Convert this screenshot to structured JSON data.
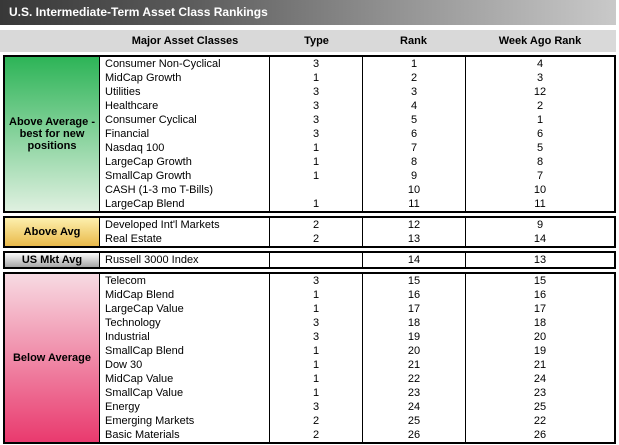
{
  "chart_data": {
    "type": "table",
    "title": "U.S. Intermediate-Term Asset Class Rankings",
    "columns": [
      "Major Asset Classes",
      "Type",
      "Rank",
      "Week Ago Rank"
    ],
    "sections": [
      {
        "id": "above-average-best",
        "label": "Above Average - best for new positions",
        "color_top": "#2db457",
        "color_bottom": "#dff0e0",
        "rows": [
          [
            "Consumer Non-Cyclical",
            "3",
            "1",
            "4"
          ],
          [
            "MidCap Growth",
            "1",
            "2",
            "3"
          ],
          [
            "Utilities",
            "3",
            "3",
            "12"
          ],
          [
            "Healthcare",
            "3",
            "4",
            "2"
          ],
          [
            "Consumer Cyclical",
            "3",
            "5",
            "1"
          ],
          [
            "Financial",
            "3",
            "6",
            "6"
          ],
          [
            "Nasdaq 100",
            "1",
            "7",
            "5"
          ],
          [
            "LargeCap Growth",
            "1",
            "8",
            "8"
          ],
          [
            "SmallCap Growth",
            "1",
            "9",
            "7"
          ],
          [
            "CASH (1-3 mo T-Bills)",
            "",
            "10",
            "10"
          ],
          [
            "LargeCap Blend",
            "1",
            "11",
            "11"
          ]
        ]
      },
      {
        "id": "above-avg",
        "label": "Above Avg",
        "color_top": "#fdf0ae",
        "color_bottom": "#e9b94a",
        "rows": [
          [
            "Developed Int'l Markets",
            "2",
            "12",
            "9"
          ],
          [
            "Real Estate",
            "2",
            "13",
            "14"
          ]
        ]
      },
      {
        "id": "us-mkt-avg",
        "label": "US Mkt Avg",
        "color_top": "#fbfbfb",
        "color_bottom": "#a6a6a6",
        "rows": [
          [
            "Russell 3000 Index",
            "",
            "14",
            "13"
          ]
        ]
      },
      {
        "id": "below-average",
        "label": "Below Average",
        "color_top": "#f7dae2",
        "color_bottom": "#e93a6e",
        "rows": [
          [
            "Telecom",
            "3",
            "15",
            "15"
          ],
          [
            "MidCap Blend",
            "1",
            "16",
            "16"
          ],
          [
            "LargeCap Value",
            "1",
            "17",
            "17"
          ],
          [
            "Technology",
            "3",
            "18",
            "18"
          ],
          [
            "Industrial",
            "3",
            "19",
            "20"
          ],
          [
            "SmallCap Blend",
            "1",
            "20",
            "19"
          ],
          [
            "Dow 30",
            "1",
            "21",
            "21"
          ],
          [
            "MidCap Value",
            "1",
            "22",
            "24"
          ],
          [
            "SmallCap Value",
            "1",
            "23",
            "23"
          ],
          [
            "Energy",
            "3",
            "24",
            "25"
          ],
          [
            "Emerging Markets",
            "2",
            "25",
            "22"
          ],
          [
            "Basic Materials",
            "2",
            "26",
            "26"
          ]
        ]
      }
    ]
  },
  "colors": {
    "title_gradient_left": "#383838",
    "title_gradient_right": "#c9c9c9",
    "header_bg": "#d9d9d9",
    "border": "#000000"
  }
}
